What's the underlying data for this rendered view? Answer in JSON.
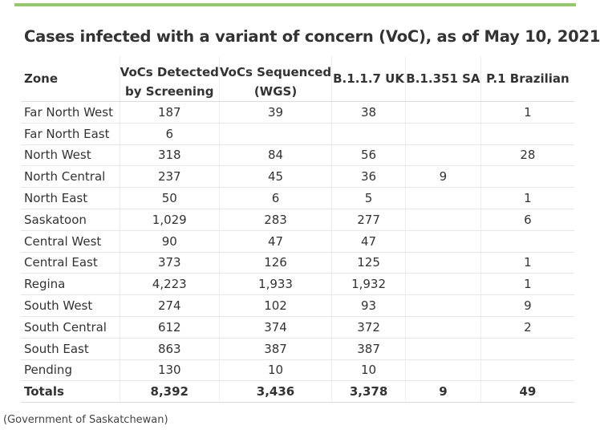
{
  "title": "Cases infected with a variant of concern (VoC), as of May 10, 2021",
  "source": "(Government of Saskatchewan)",
  "headers": {
    "zone": "Zone",
    "screening_1": "VoCs Detected",
    "screening_2": "by Screening",
    "sequenced_1": "VoCs Sequenced",
    "sequenced_2": "(WGS)",
    "uk": "B.1.1.7 UK",
    "sa": "B.1.351 SA",
    "br": "P.1 Brazilian"
  },
  "rows": [
    {
      "zone": "Far North West",
      "screening": "187",
      "sequenced": "39",
      "uk": "38",
      "sa": "",
      "br": "1"
    },
    {
      "zone": "Far North East",
      "screening": "6",
      "sequenced": "",
      "uk": "",
      "sa": "",
      "br": ""
    },
    {
      "zone": "North West",
      "screening": "318",
      "sequenced": "84",
      "uk": "56",
      "sa": "",
      "br": "28"
    },
    {
      "zone": "North Central",
      "screening": "237",
      "sequenced": "45",
      "uk": "36",
      "sa": "9",
      "br": ""
    },
    {
      "zone": "North East",
      "screening": "50",
      "sequenced": "6",
      "uk": "5",
      "sa": "",
      "br": "1"
    },
    {
      "zone": "Saskatoon",
      "screening": "1,029",
      "sequenced": "283",
      "uk": "277",
      "sa": "",
      "br": "6"
    },
    {
      "zone": "Central West",
      "screening": "90",
      "sequenced": "47",
      "uk": "47",
      "sa": "",
      "br": ""
    },
    {
      "zone": "Central East",
      "screening": "373",
      "sequenced": "126",
      "uk": "125",
      "sa": "",
      "br": "1"
    },
    {
      "zone": "Regina",
      "screening": "4,223",
      "sequenced": "1,933",
      "uk": "1,932",
      "sa": "",
      "br": "1"
    },
    {
      "zone": "South West",
      "screening": "274",
      "sequenced": "102",
      "uk": "93",
      "sa": "",
      "br": "9"
    },
    {
      "zone": "South Central",
      "screening": "612",
      "sequenced": "374",
      "uk": "372",
      "sa": "",
      "br": "2"
    },
    {
      "zone": "South East",
      "screening": "863",
      "sequenced": "387",
      "uk": "387",
      "sa": "",
      "br": ""
    },
    {
      "zone": "Pending",
      "screening": "130",
      "sequenced": "10",
      "uk": "10",
      "sa": "",
      "br": ""
    }
  ],
  "totals": {
    "zone": "Totals",
    "screening": "8,392",
    "sequenced": "3,436",
    "uk": "3,378",
    "sa": "9",
    "br": "49"
  },
  "colors": {
    "accent_bar": "#8fcb6a"
  }
}
